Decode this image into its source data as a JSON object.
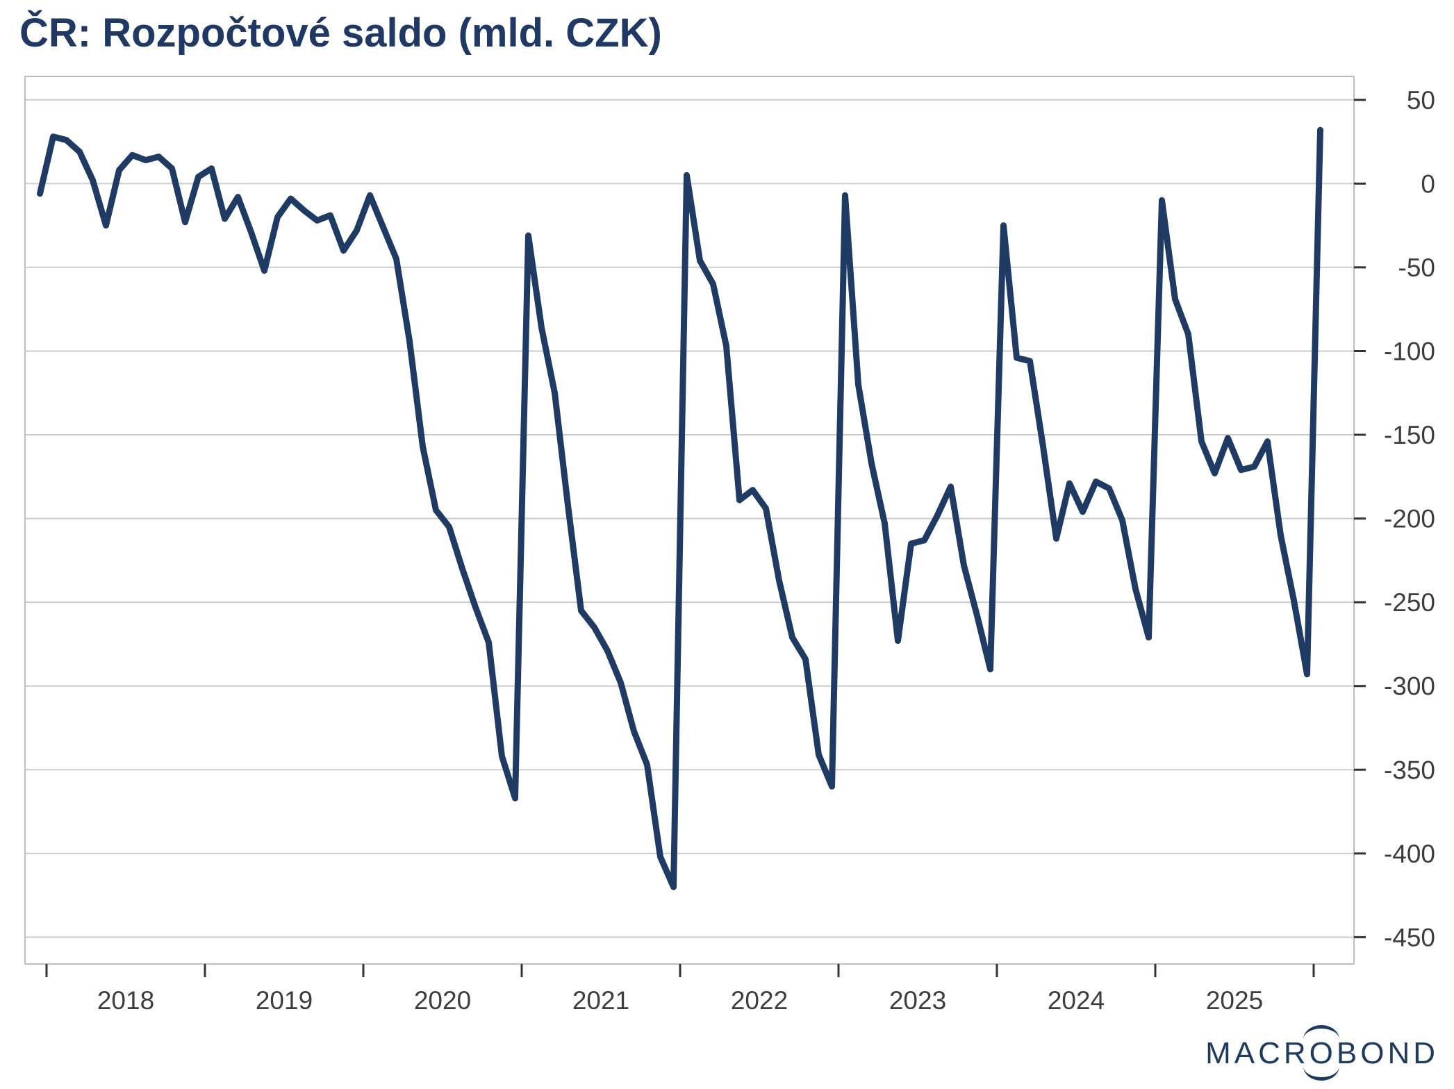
{
  "title": "ČR: Rozpočtové saldo (mld. CZK)",
  "logo": {
    "part1": "MACR",
    "o": "O",
    "part2": "BOND"
  },
  "colors": {
    "line": "#1f3b63",
    "title": "#1f3864",
    "axis_text": "#3d3d3d",
    "gridline": "#cccccc",
    "frame": "#bfbfbf",
    "tick": "#333333"
  },
  "chart_data": {
    "type": "line",
    "title": "ČR: Rozpočtové saldo (mld. CZK)",
    "unit": "mld. CZK",
    "frequency": "monthly",
    "grid": "horizontal",
    "legend_position": "none",
    "ylim": [
      -466,
      64
    ],
    "y_ticks": [
      50,
      0,
      -50,
      -100,
      -150,
      -200,
      -250,
      -300,
      -350,
      -400,
      -450
    ],
    "x_tick_labels": [
      "2018",
      "2019",
      "2020",
      "2021",
      "2022",
      "2023",
      "2024",
      "2025"
    ],
    "x_year_boundaries": [
      "2018",
      "2019",
      "2020",
      "2021",
      "2022",
      "2023",
      "2024",
      "2025",
      "2026"
    ],
    "series": [
      {
        "name": "Rozpočtové saldo",
        "months": [
          "2017-12",
          "2018-01",
          "2018-02",
          "2018-03",
          "2018-04",
          "2018-05",
          "2018-06",
          "2018-07",
          "2018-08",
          "2018-09",
          "2018-10",
          "2018-11",
          "2018-12",
          "2019-01",
          "2019-02",
          "2019-03",
          "2019-04",
          "2019-05",
          "2019-06",
          "2019-07",
          "2019-08",
          "2019-09",
          "2019-10",
          "2019-11",
          "2019-12",
          "2020-01",
          "2020-02",
          "2020-03",
          "2020-04",
          "2020-05",
          "2020-06",
          "2020-07",
          "2020-08",
          "2020-09",
          "2020-10",
          "2020-11",
          "2020-12",
          "2021-01",
          "2021-02",
          "2021-03",
          "2021-04",
          "2021-05",
          "2021-06",
          "2021-07",
          "2021-08",
          "2021-09",
          "2021-10",
          "2021-11",
          "2021-12",
          "2022-01",
          "2022-02",
          "2022-03",
          "2022-04",
          "2022-05",
          "2022-06",
          "2022-07",
          "2022-08",
          "2022-09",
          "2022-10",
          "2022-11",
          "2022-12",
          "2023-01",
          "2023-02",
          "2023-03",
          "2023-04",
          "2023-05",
          "2023-06",
          "2023-07",
          "2023-08",
          "2023-09",
          "2023-10",
          "2023-11",
          "2023-12",
          "2024-01",
          "2024-02",
          "2024-03",
          "2024-04",
          "2024-05",
          "2024-06",
          "2024-07",
          "2024-08",
          "2024-09",
          "2024-10",
          "2024-11",
          "2024-12",
          "2025-01",
          "2025-02",
          "2025-03",
          "2025-04",
          "2025-05",
          "2025-06",
          "2025-07",
          "2025-08",
          "2025-09",
          "2025-10",
          "2025-11",
          "2025-12",
          "2026-01"
        ],
        "values": [
          -6,
          28,
          26,
          19,
          2,
          -25,
          8,
          17,
          14,
          16,
          9,
          -23,
          4,
          9,
          -21,
          -8,
          -29,
          -52,
          -20,
          -9,
          -16,
          -22,
          -19,
          -40,
          -28,
          -7,
          -26,
          -45,
          -94,
          -157,
          -195,
          -205,
          -230,
          -253,
          -274,
          -342,
          -367,
          -31,
          -86,
          -125,
          -192,
          -255,
          -265,
          -279,
          -298,
          -327,
          -347,
          -402,
          -420,
          5,
          -46,
          -60,
          -97,
          -189,
          -183,
          -194,
          -237,
          -271,
          -284,
          -341,
          -360,
          -7,
          -120,
          -167,
          -203,
          -273,
          -215,
          -213,
          -198,
          -181,
          -228,
          -258,
          -290,
          -25,
          -104,
          -106,
          -157,
          -212,
          -179,
          -196,
          -178,
          -182,
          -201,
          -242,
          -271,
          -10,
          -69,
          -90,
          -154,
          -173,
          -152,
          -171,
          -169,
          -154,
          -210,
          -249,
          -293,
          32
        ]
      }
    ]
  }
}
